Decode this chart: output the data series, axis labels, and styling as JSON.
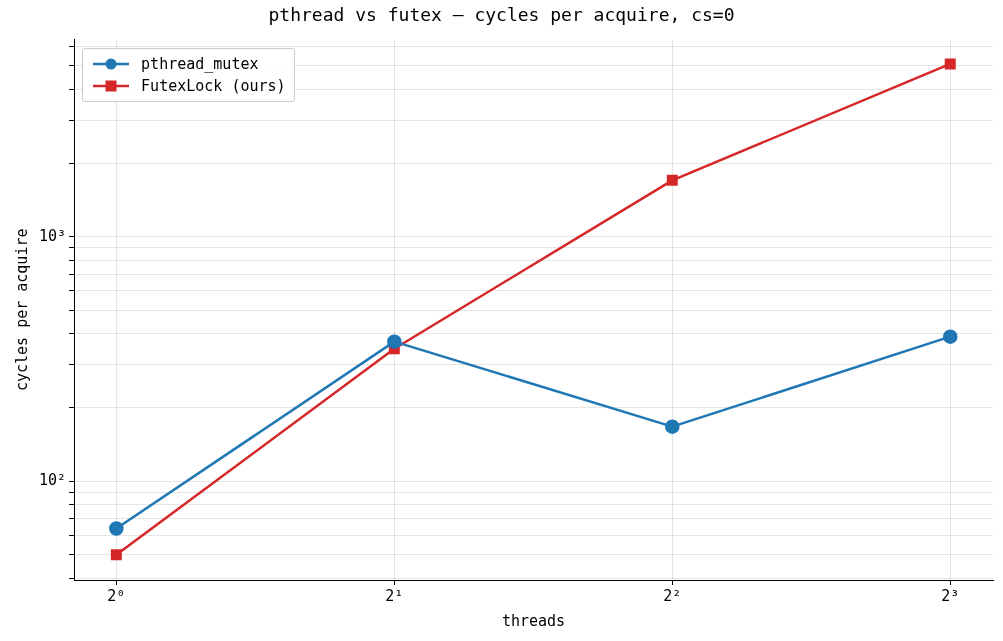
{
  "chart_data": {
    "type": "line",
    "title": "pthread vs futex — cycles per acquire, cs=0",
    "xlabel": "threads",
    "ylabel": "cycles per acquire",
    "x": [
      1,
      2,
      4,
      8
    ],
    "series": [
      {
        "name": "pthread_mutex",
        "color": "#1f77b4",
        "marker": "circle",
        "values": [
          64,
          372,
          167,
          390
        ]
      },
      {
        "name": "FutexLock (ours)",
        "color": "#d62728",
        "marker": "square",
        "values": [
          50,
          348,
          1700,
          5090
        ]
      }
    ],
    "log": "xy",
    "grid": true,
    "legend": "top left",
    "line_style": "solid",
    "xlim": [
      0.9,
      8.9
    ],
    "ylim": [
      39.4,
      6400
    ],
    "xticks": [
      {
        "value": 1,
        "label": "2⁰"
      },
      {
        "value": 2,
        "label": "2¹"
      },
      {
        "value": 4,
        "label": "2²"
      },
      {
        "value": 8,
        "label": "2³"
      }
    ],
    "yticks": [
      {
        "value": 40,
        "label": null
      },
      {
        "value": 50,
        "label": null
      },
      {
        "value": 60,
        "label": null
      },
      {
        "value": 70,
        "label": null
      },
      {
        "value": 80,
        "label": null
      },
      {
        "value": 90,
        "label": null
      },
      {
        "value": 100,
        "label": "10²"
      },
      {
        "value": 200,
        "label": null
      },
      {
        "value": 300,
        "label": null
      },
      {
        "value": 400,
        "label": null
      },
      {
        "value": 500,
        "label": null
      },
      {
        "value": 600,
        "label": null
      },
      {
        "value": 700,
        "label": null
      },
      {
        "value": 800,
        "label": null
      },
      {
        "value": 900,
        "label": null
      },
      {
        "value": 1000,
        "label": "10³"
      },
      {
        "value": 2000,
        "label": null
      },
      {
        "value": 3000,
        "label": null
      },
      {
        "value": 4000,
        "label": null
      },
      {
        "value": 5000,
        "label": null
      },
      {
        "value": 6000,
        "label": null
      }
    ]
  }
}
